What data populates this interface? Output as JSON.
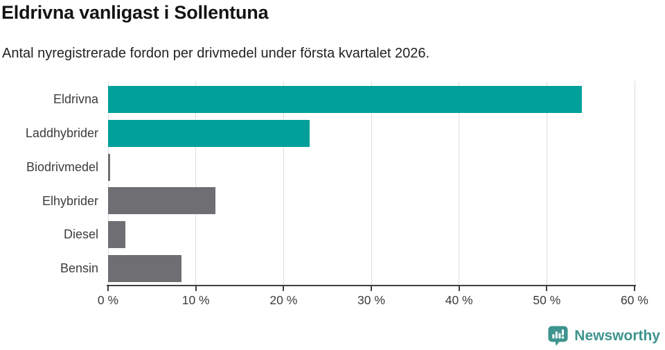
{
  "chart_data": {
    "type": "bar",
    "orientation": "horizontal",
    "title": "Eldrivna vanligast i Sollentuna",
    "subtitle": "Antal nyregistrerade fordon per drivmedel under första kvartalet 2026.",
    "categories": [
      "Eldrivna",
      "Laddhybrider",
      "Biodrivmedel",
      "Elhybrider",
      "Diesel",
      "Bensin"
    ],
    "values": [
      54,
      23,
      0.2,
      12.2,
      2,
      8.4
    ],
    "unit": "%",
    "xlim": [
      0,
      60
    ],
    "x_ticks": [
      0,
      10,
      20,
      30,
      40,
      50,
      60
    ],
    "x_tick_labels": [
      "0 %",
      "10 %",
      "20 %",
      "30 %",
      "40 %",
      "50 %",
      "60 %"
    ],
    "bar_colors": [
      "#00a09a",
      "#00a09a",
      "#6e6e73",
      "#6e6e73",
      "#6e6e73",
      "#6e6e73"
    ],
    "grid": true,
    "legend": false
  },
  "colors": {
    "accent_teal": "#00a09a",
    "neutral_gray": "#6e6e73",
    "axis": "#3f3f3f",
    "gridline": "#dcdcdc",
    "brand_teal": "#3e948e"
  },
  "footer": {
    "brand": "Newsworthy",
    "logo_icon": "newsworthy-speech-bubble-chart-icon"
  }
}
